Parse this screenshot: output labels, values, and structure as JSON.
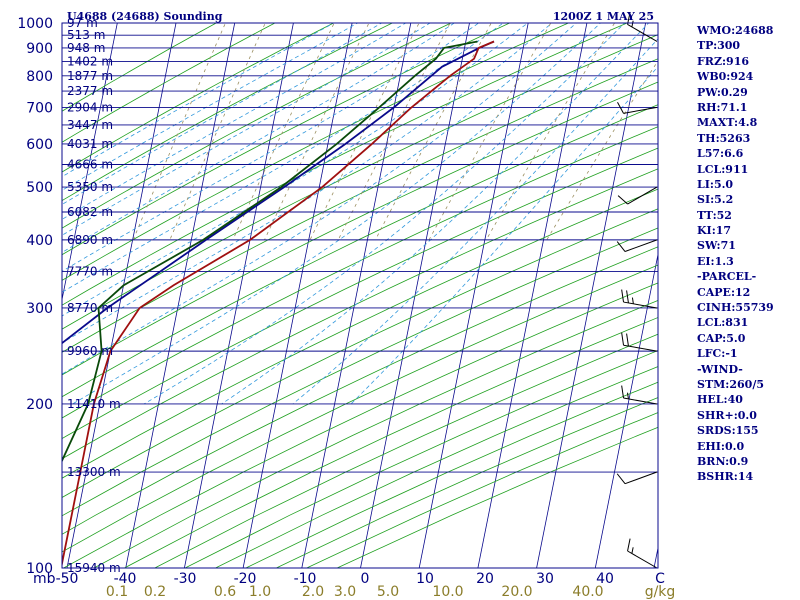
{
  "title_left": "U4688 (24688) Sounding",
  "title_right": "1200Z  1 MAY 25",
  "colors": {
    "temperature": "#a01010",
    "dewpoint": "#0a4a0a",
    "parcel": "#0a0a8c",
    "isobar": "#0a0a8c",
    "isotherm": "#0a0a8c",
    "dry_adiabat": "#20a020",
    "moist_adiabat": "#3399dd",
    "mixing_ratio": "#9b8f60",
    "label": "#000080",
    "wet_label": "#8b7d2a"
  },
  "side_panel": [
    "WMO:24688",
    "TP:300",
    "FRZ:916",
    "WB0:924",
    "PW:0.29",
    "RH:71.1",
    "MAXT:4.8",
    "TH:5263",
    "L57:6.6",
    "LCL:911",
    "LI:5.0",
    "SI:5.2",
    "TT:52",
    "KI:17",
    "SW:71",
    "EI:1.3",
    "-PARCEL-",
    "CAPE:12",
    "CINH:55739",
    "LCL:831",
    "CAP:5.0",
    "LFC:-1",
    "-WIND-",
    "STM:260/5",
    "HEL:40",
    "SHR+:0.0",
    "SRDS:155",
    "EHI:0.0",
    "BRN:0.9",
    "BSHR:14"
  ],
  "chart_data": {
    "type": "skew-t",
    "x_unit": "°C",
    "y_unit": "mb",
    "pressure_range": [
      1000,
      100
    ],
    "temperature_ticks": [
      "-50",
      "-40",
      "-30",
      "-20",
      "-10",
      "0",
      "10",
      "20",
      "30",
      "40",
      "C"
    ],
    "pressure_ticks": [
      {
        "p": 100,
        "label": "100"
      },
      {
        "p": 200,
        "label": "200"
      },
      {
        "p": 300,
        "label": "300"
      },
      {
        "p": 400,
        "label": "400"
      },
      {
        "p": 500,
        "label": "500"
      },
      {
        "p": 600,
        "label": "600"
      },
      {
        "p": 700,
        "label": "700"
      },
      {
        "p": 800,
        "label": "800"
      },
      {
        "p": 900,
        "label": "900"
      },
      {
        "p": 1000,
        "label": "1000"
      }
    ],
    "unit_label": "mb",
    "height_levels": [
      {
        "p": 100,
        "label": "15940 m"
      },
      {
        "p": 150,
        "label": "13300 m"
      },
      {
        "p": 200,
        "label": "11410 m"
      },
      {
        "p": 250,
        "label": "9960 m"
      },
      {
        "p": 300,
        "label": "8770 m"
      },
      {
        "p": 350,
        "label": "7770 m"
      },
      {
        "p": 400,
        "label": "6890 m"
      },
      {
        "p": 450,
        "label": "6082 m"
      },
      {
        "p": 500,
        "label": "5350 m"
      },
      {
        "p": 550,
        "label": "4666 m"
      },
      {
        "p": 600,
        "label": "4031 m"
      },
      {
        "p": 650,
        "label": "3447 m"
      },
      {
        "p": 700,
        "label": "2904 m"
      },
      {
        "p": 750,
        "label": "2377 m"
      },
      {
        "p": 800,
        "label": "1877 m"
      },
      {
        "p": 850,
        "label": "1402 m"
      },
      {
        "p": 900,
        "label": "948 m"
      },
      {
        "p": 950,
        "label": "513 m"
      },
      {
        "p": 1000,
        "label": "97 m"
      }
    ],
    "mixing_ratio_labels": [
      "0.1",
      "0.2",
      "0.6",
      "1.0",
      "2.0",
      "3.0",
      "5.0",
      "10.0",
      "20.0",
      "40.0"
    ],
    "mixing_ratio_unit": "g/kg",
    "temperature_profile": [
      {
        "p": 925,
        "t": 4.8
      },
      {
        "p": 900,
        "t": 2.4
      },
      {
        "p": 860,
        "t": 2.0
      },
      {
        "p": 800,
        "t": -1.5
      },
      {
        "p": 700,
        "t": -7.0
      },
      {
        "p": 600,
        "t": -12.5
      },
      {
        "p": 500,
        "t": -19.5
      },
      {
        "p": 400,
        "t": -30.0
      },
      {
        "p": 330,
        "t": -41.5
      },
      {
        "p": 300,
        "t": -46.5
      },
      {
        "p": 270,
        "t": -48.5
      },
      {
        "p": 250,
        "t": -50.0
      },
      {
        "p": 200,
        "t": -51.0
      },
      {
        "p": 150,
        "t": -51.0
      },
      {
        "p": 100,
        "t": -51.0
      }
    ],
    "dewpoint_profile": [
      {
        "p": 925,
        "t": 2.0
      },
      {
        "p": 900,
        "t": -3.5
      },
      {
        "p": 860,
        "t": -4.5
      },
      {
        "p": 800,
        "t": -7.5
      },
      {
        "p": 700,
        "t": -12.5
      },
      {
        "p": 600,
        "t": -18.5
      },
      {
        "p": 500,
        "t": -26.5
      },
      {
        "p": 400,
        "t": -38.0
      },
      {
        "p": 330,
        "t": -50.0
      },
      {
        "p": 300,
        "t": -53.5
      },
      {
        "p": 250,
        "t": -51.5
      },
      {
        "p": 200,
        "t": -52.0
      },
      {
        "p": 150,
        "t": -55.0
      },
      {
        "p": 100,
        "t": -60.0
      }
    ],
    "parcel_profile": [
      {
        "p": 925,
        "t": 4.8
      },
      {
        "p": 900,
        "t": 2.5
      },
      {
        "p": 831,
        "t": -3.2
      },
      {
        "p": 700,
        "t": -10.0
      },
      {
        "p": 600,
        "t": -17.0
      },
      {
        "p": 500,
        "t": -26.0
      },
      {
        "p": 400,
        "t": -37.5
      },
      {
        "p": 300,
        "t": -52.0
      },
      {
        "p": 250,
        "t": -60.0
      },
      {
        "p": 200,
        "t": -68.0
      },
      {
        "p": 150,
        "t": -79.0
      },
      {
        "p": 135,
        "t": -83.0
      }
    ],
    "wind_barbs": [
      {
        "p": 925,
        "dir": 300,
        "spd": 15
      },
      {
        "p": 700,
        "dir": 260,
        "spd": 10
      },
      {
        "p": 500,
        "dir": 240,
        "spd": 10
      },
      {
        "p": 400,
        "dir": 250,
        "spd": 10
      },
      {
        "p": 300,
        "dir": 280,
        "spd": 25
      },
      {
        "p": 250,
        "dir": 280,
        "spd": 20
      },
      {
        "p": 200,
        "dir": 280,
        "spd": 15
      },
      {
        "p": 150,
        "dir": 250,
        "spd": 10
      },
      {
        "p": 100,
        "dir": 300,
        "spd": 15
      }
    ]
  }
}
